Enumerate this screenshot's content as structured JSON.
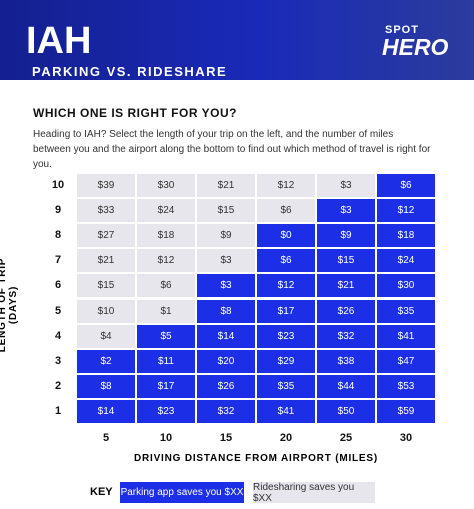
{
  "header": {
    "code": "IAH",
    "subtitle": "PARKING VS. RIDESHARE",
    "logo_top": "SPOT",
    "logo_bottom": "HERO"
  },
  "intro": {
    "question": "WHICH ONE IS RIGHT FOR YOU?",
    "text": "Heading to IAH? Select the length of your trip on the left, and the number of miles between you and the airport along the bottom to find out which method of travel is right for you."
  },
  "table": {
    "y_label": "LENGTH OF TRIP (DAYS)",
    "x_label": "DRIVING DISTANCE FROM AIRPORT (MILES)",
    "columns": [
      "5",
      "10",
      "15",
      "20",
      "25",
      "30"
    ],
    "rows": [
      {
        "label": "10",
        "cells": [
          "$39",
          "$30",
          "$21",
          "$12",
          "$3",
          "$6"
        ],
        "parking": [
          false,
          false,
          false,
          false,
          false,
          true
        ]
      },
      {
        "label": "9",
        "cells": [
          "$33",
          "$24",
          "$15",
          "$6",
          "$3",
          "$12"
        ],
        "parking": [
          false,
          false,
          false,
          false,
          true,
          true
        ]
      },
      {
        "label": "8",
        "cells": [
          "$27",
          "$18",
          "$9",
          "$0",
          "$9",
          "$18"
        ],
        "parking": [
          false,
          false,
          false,
          true,
          true,
          true
        ]
      },
      {
        "label": "7",
        "cells": [
          "$21",
          "$12",
          "$3",
          "$6",
          "$15",
          "$24"
        ],
        "parking": [
          false,
          false,
          false,
          true,
          true,
          true
        ]
      },
      {
        "label": "6",
        "cells": [
          "$15",
          "$6",
          "$3",
          "$12",
          "$21",
          "$30"
        ],
        "parking": [
          false,
          false,
          true,
          true,
          true,
          true
        ]
      },
      {
        "label": "5",
        "cells": [
          "$10",
          "$1",
          "$8",
          "$17",
          "$26",
          "$35"
        ],
        "parking": [
          false,
          false,
          true,
          true,
          true,
          true
        ]
      },
      {
        "label": "4",
        "cells": [
          "$4",
          "$5",
          "$14",
          "$23",
          "$32",
          "$41"
        ],
        "parking": [
          false,
          true,
          true,
          true,
          true,
          true
        ]
      },
      {
        "label": "3",
        "cells": [
          "$2",
          "$11",
          "$20",
          "$29",
          "$38",
          "$47"
        ],
        "parking": [
          true,
          true,
          true,
          true,
          true,
          true
        ]
      },
      {
        "label": "2",
        "cells": [
          "$8",
          "$17",
          "$26",
          "$35",
          "$44",
          "$53"
        ],
        "parking": [
          true,
          true,
          true,
          true,
          true,
          true
        ]
      },
      {
        "label": "1",
        "cells": [
          "$14",
          "$23",
          "$32",
          "$41",
          "$50",
          "$59"
        ],
        "parking": [
          true,
          true,
          true,
          true,
          true,
          true
        ]
      }
    ]
  },
  "key": {
    "title": "KEY",
    "parking": {
      "label": "Parking app saves you $XX",
      "color": "#1c2fe6"
    },
    "rideshare": {
      "label": "Ridesharing saves you $XX",
      "color": "#e6e6ec"
    }
  }
}
